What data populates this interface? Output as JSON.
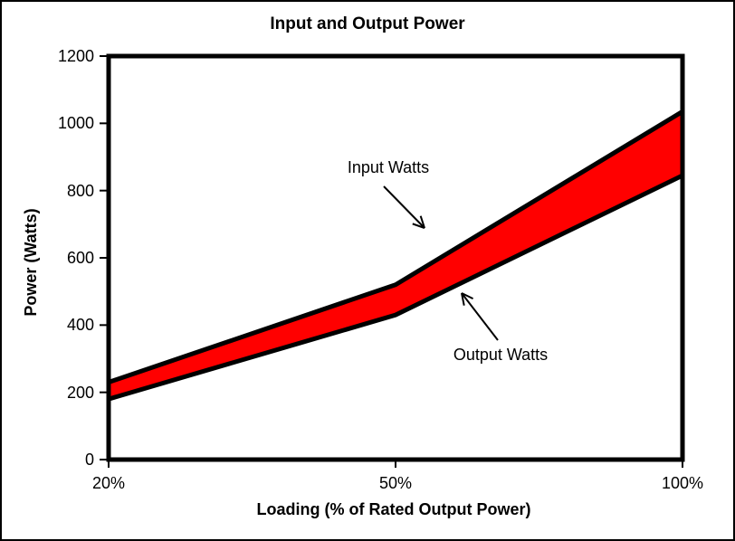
{
  "chart_data": {
    "type": "area",
    "title": "Input and Output Power",
    "xlabel": "Loading (% of Rated Output Power)",
    "ylabel": "Power (Watts)",
    "categories": [
      "20%",
      "50%",
      "100%"
    ],
    "series": [
      {
        "name": "Input Watts",
        "values": [
          230,
          520,
          1035
        ]
      },
      {
        "name": "Output Watts",
        "values": [
          180,
          430,
          845
        ]
      }
    ],
    "ylim": [
      0,
      1200
    ],
    "y_ticks": [
      0,
      200,
      400,
      600,
      800,
      1000,
      1200
    ],
    "grid": false,
    "legend_position": "none",
    "colors": {
      "band_fill": "#ff0000",
      "line": "#000000",
      "text": "#000000",
      "background": "#ffffff"
    },
    "annotations": [
      {
        "label": "Input Watts",
        "target_series": "Input Watts"
      },
      {
        "label": "Output Watts",
        "target_series": "Output Watts"
      }
    ]
  }
}
